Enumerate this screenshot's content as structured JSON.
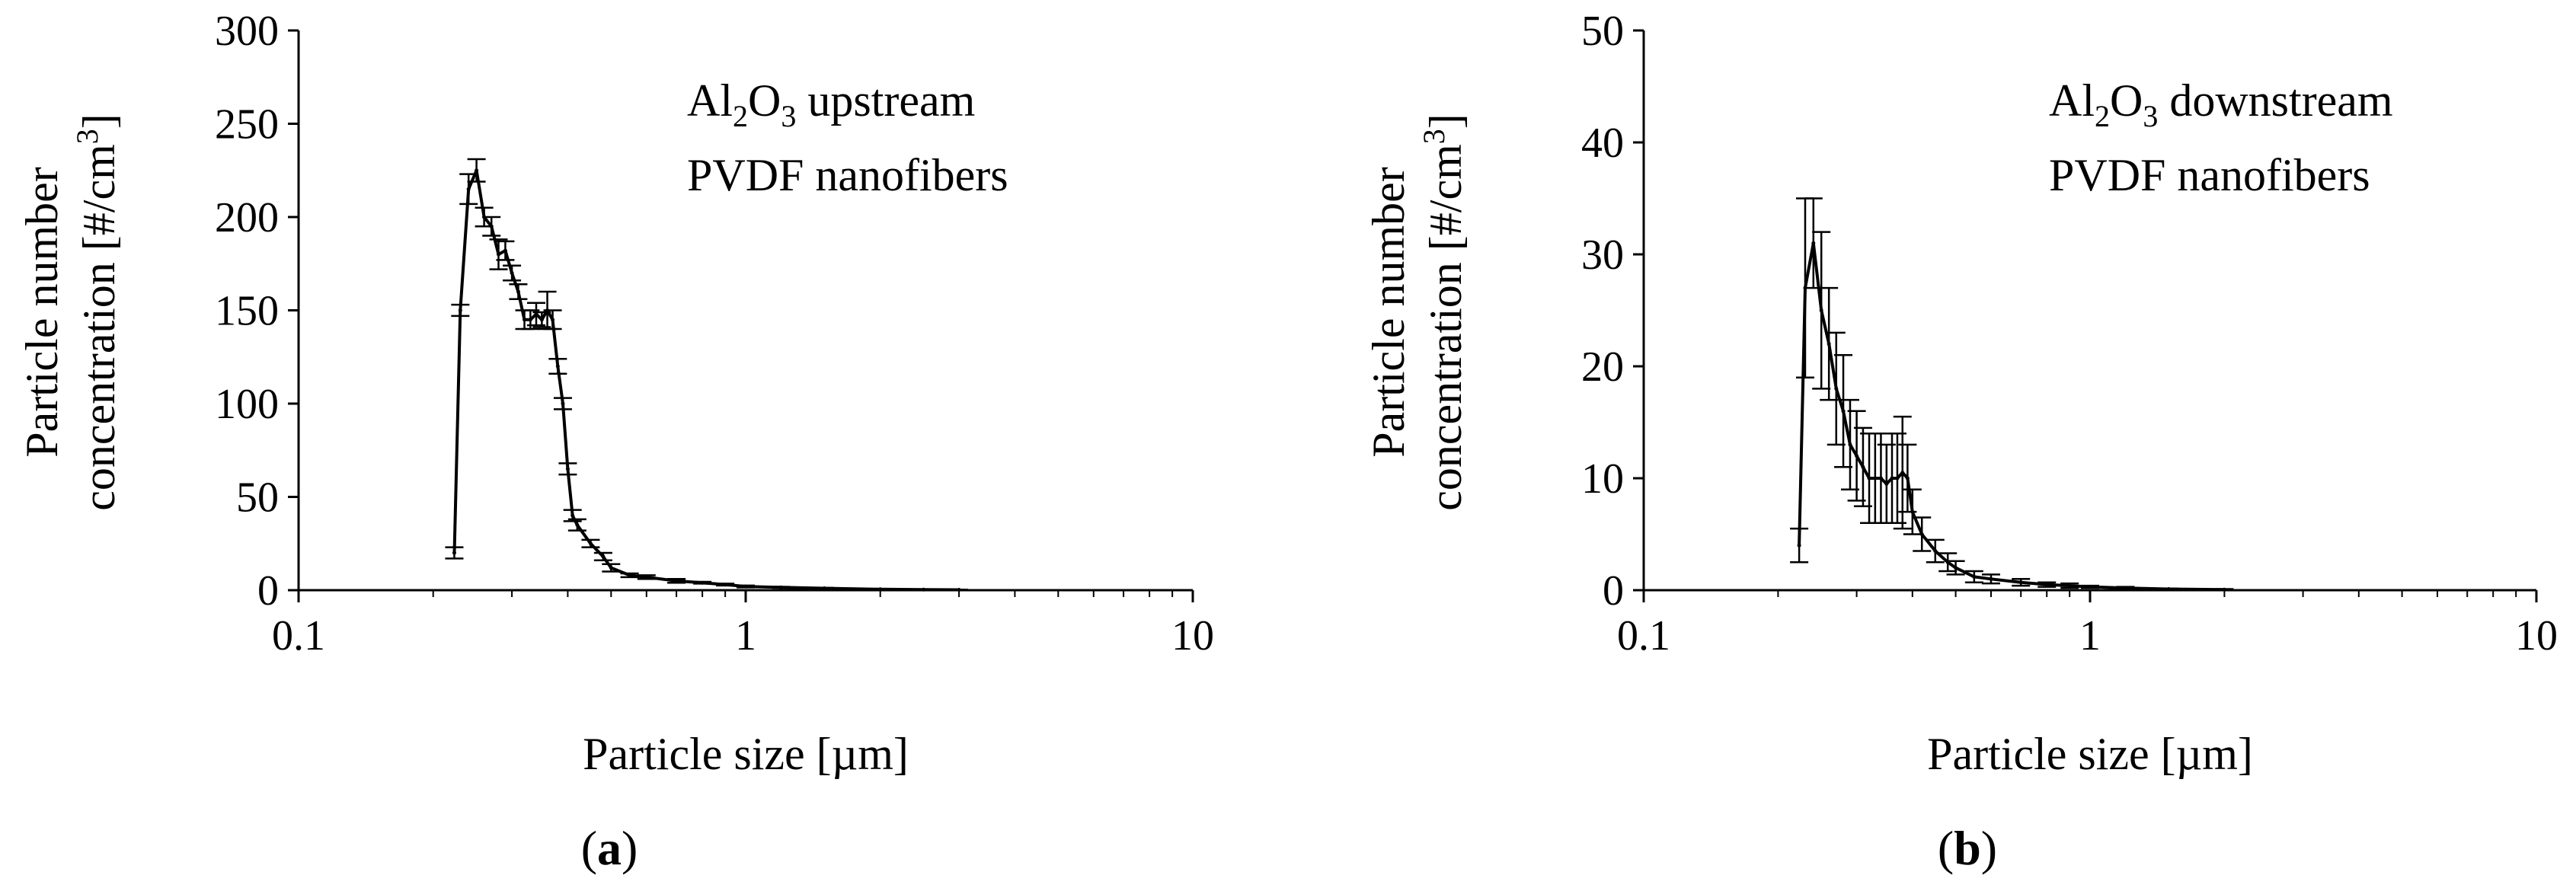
{
  "chart_data": [
    {
      "type": "line",
      "panel_label": {
        "open": "(",
        "letter": "a",
        "close": ")"
      },
      "annotation": {
        "line1_prefix": "Al",
        "line1_sub1": "2",
        "line1_mid": "O",
        "line1_sub2": "3",
        "line1_suffix": " upstream",
        "line2": "PVDF nanofibers"
      },
      "xlabel": "Particle size [µm]",
      "ylabel_line1": "Particle number",
      "ylabel_line2_prefix": "concentration [#/cm",
      "ylabel_line2_sup": "3",
      "ylabel_line2_suffix": "]",
      "x_scale": "log",
      "xlim": [
        0.1,
        10
      ],
      "x_ticks": [
        0.1,
        1,
        10
      ],
      "x_tick_labels": [
        "0.1",
        "1",
        "10"
      ],
      "ylim": [
        0,
        300
      ],
      "y_ticks": [
        0,
        50,
        100,
        150,
        200,
        250,
        300
      ],
      "y_tick_labels": [
        "0",
        "50",
        "100",
        "150",
        "200",
        "250",
        "300"
      ],
      "grid": false,
      "series_color": "#000000",
      "series": [
        {
          "x": [
            0.223,
            0.23,
            0.24,
            0.25,
            0.26,
            0.27,
            0.28,
            0.29,
            0.3,
            0.31,
            0.32,
            0.33,
            0.34,
            0.35,
            0.36,
            0.37,
            0.38,
            0.39,
            0.4,
            0.41,
            0.42,
            0.45,
            0.48,
            0.5,
            0.55,
            0.6,
            0.7,
            0.8,
            0.9,
            1.0,
            1.2,
            1.5,
            2.0,
            2.5,
            3.0
          ],
          "y": [
            20,
            150,
            215,
            225,
            200,
            195,
            180,
            182,
            170,
            160,
            145,
            145,
            148,
            145,
            150,
            145,
            120,
            100,
            65,
            40,
            35,
            25,
            18,
            12,
            8,
            7,
            5,
            4,
            3,
            2,
            1.5,
            1,
            0.5,
            0.3,
            0.2
          ],
          "err": [
            3,
            3,
            8,
            6,
            5,
            5,
            8,
            5,
            4,
            4,
            5,
            5,
            6,
            4,
            10,
            5,
            4,
            3,
            3,
            3,
            3,
            2,
            2,
            2,
            1,
            1,
            1,
            0.5,
            0.5,
            0.5,
            0.3,
            0.3,
            0.2,
            0.2,
            0.1
          ]
        }
      ]
    },
    {
      "type": "line",
      "panel_label": {
        "open": "(",
        "letter": "b",
        "close": ")"
      },
      "annotation": {
        "line1_prefix": "Al",
        "line1_sub1": "2",
        "line1_mid": "O",
        "line1_sub2": "3",
        "line1_suffix": " downstream",
        "line2": "PVDF nanofibers"
      },
      "xlabel": "Particle size [µm]",
      "ylabel_line1": "Particle number",
      "ylabel_line2_prefix": "concentration [#/cm",
      "ylabel_line2_sup": "3",
      "ylabel_line2_suffix": "]",
      "x_scale": "log",
      "xlim": [
        0.1,
        10
      ],
      "x_ticks": [
        0.1,
        1,
        10
      ],
      "x_tick_labels": [
        "0.1",
        "1",
        "10"
      ],
      "ylim": [
        0,
        50
      ],
      "y_ticks": [
        0,
        10,
        20,
        30,
        40,
        50
      ],
      "y_tick_labels": [
        "0",
        "10",
        "20",
        "30",
        "40",
        "50"
      ],
      "grid": false,
      "series_color": "#000000",
      "series": [
        {
          "x": [
            0.223,
            0.23,
            0.24,
            0.25,
            0.26,
            0.27,
            0.28,
            0.29,
            0.3,
            0.31,
            0.32,
            0.33,
            0.34,
            0.35,
            0.36,
            0.37,
            0.38,
            0.39,
            0.4,
            0.42,
            0.45,
            0.48,
            0.5,
            0.55,
            0.6,
            0.7,
            0.8,
            0.9,
            1.0,
            1.2,
            1.5,
            2.0
          ],
          "y": [
            4,
            27,
            31,
            25,
            22,
            18,
            16,
            13,
            12,
            11,
            10,
            10,
            10,
            9.5,
            10,
            10,
            10.5,
            10,
            7,
            5,
            3.5,
            2.5,
            2,
            1.2,
            1,
            0.7,
            0.5,
            0.4,
            0.3,
            0.2,
            0.1,
            0.05
          ],
          "err": [
            1.5,
            8,
            4,
            7,
            5,
            5,
            5,
            4,
            4,
            3.5,
            4,
            4,
            4,
            3.5,
            4,
            4,
            5,
            3,
            2,
            1.5,
            1,
            0.8,
            0.6,
            0.5,
            0.4,
            0.3,
            0.2,
            0.2,
            0.1,
            0.1,
            0.05,
            0.05
          ]
        }
      ]
    }
  ]
}
